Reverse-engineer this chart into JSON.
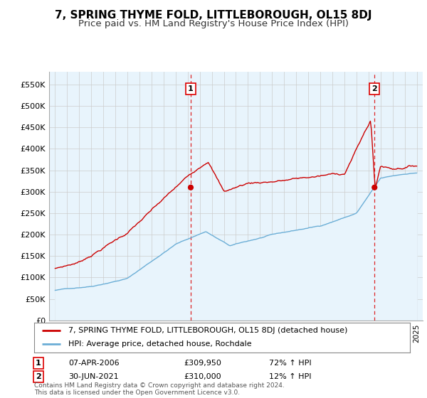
{
  "title": "7, SPRING THYME FOLD, LITTLEBOROUGH, OL15 8DJ",
  "subtitle": "Price paid vs. HM Land Registry's House Price Index (HPI)",
  "title_fontsize": 11,
  "subtitle_fontsize": 9.5,
  "ylim": [
    0,
    580000
  ],
  "yticks": [
    0,
    50000,
    100000,
    150000,
    200000,
    250000,
    300000,
    350000,
    400000,
    450000,
    500000,
    550000
  ],
  "ytick_labels": [
    "£0",
    "£50K",
    "£100K",
    "£150K",
    "£200K",
    "£250K",
    "£300K",
    "£350K",
    "£400K",
    "£450K",
    "£500K",
    "£550K"
  ],
  "sale1_yr": 2006.25,
  "sale1_price": 309950,
  "sale1_label": "1",
  "sale1_date_str": "07-APR-2006",
  "sale1_amount_str": "£309,950",
  "sale1_hpi_str": "72% ↑ HPI",
  "sale2_yr": 2021.5,
  "sale2_price": 310000,
  "sale2_label": "2",
  "sale2_date_str": "30-JUN-2021",
  "sale2_amount_str": "£310,000",
  "sale2_hpi_str": "12% ↑ HPI",
  "hpi_color": "#6baed6",
  "hpi_fill_color": "#ddeeff",
  "sale_color": "#cc0000",
  "dashed_color": "#dd0000",
  "legend_label_sale": "7, SPRING THYME FOLD, LITTLEBOROUGH, OL15 8DJ (detached house)",
  "legend_label_hpi": "HPI: Average price, detached house, Rochdale",
  "footnote": "Contains HM Land Registry data © Crown copyright and database right 2024.\nThis data is licensed under the Open Government Licence v3.0.",
  "background_color": "#ffffff",
  "grid_color": "#cccccc",
  "chart_bg_color": "#e8f4fc"
}
